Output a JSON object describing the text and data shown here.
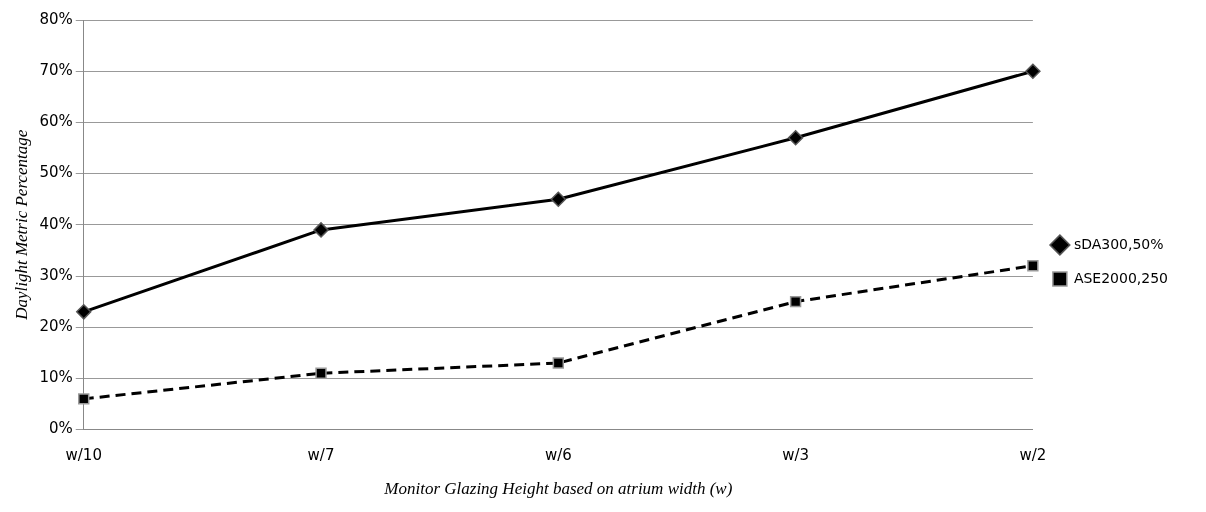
{
  "chart_data": {
    "type": "line",
    "xlabel": "Monitor Glazing Height based on atrium width (w)",
    "ylabel": "Daylight Metric Percentage",
    "categories": [
      "w/10",
      "w/7",
      "w/6",
      "w/3",
      "w/2"
    ],
    "series": [
      {
        "name": "sDA300,50%",
        "color": "#000000",
        "values": [
          23,
          39,
          45,
          57,
          70
        ],
        "marker": "diamond",
        "line_style": "solid"
      },
      {
        "name": "ASE2000,250",
        "color": "#000000",
        "values": [
          6,
          11,
          13,
          25,
          32
        ],
        "marker": "square",
        "line_style": "dashed"
      }
    ],
    "ylim": [
      0,
      80
    ],
    "yticks": [
      {
        "value": 0,
        "label": "0%"
      },
      {
        "value": 10,
        "label": "10%"
      },
      {
        "value": 20,
        "label": "20%"
      },
      {
        "value": 30,
        "label": "30%"
      },
      {
        "value": 40,
        "label": "40%"
      },
      {
        "value": 50,
        "label": "50%"
      },
      {
        "value": 60,
        "label": "60%"
      },
      {
        "value": 70,
        "label": "70%"
      },
      {
        "value": 80,
        "label": "80%"
      }
    ],
    "grid": "y",
    "legend": "right"
  }
}
